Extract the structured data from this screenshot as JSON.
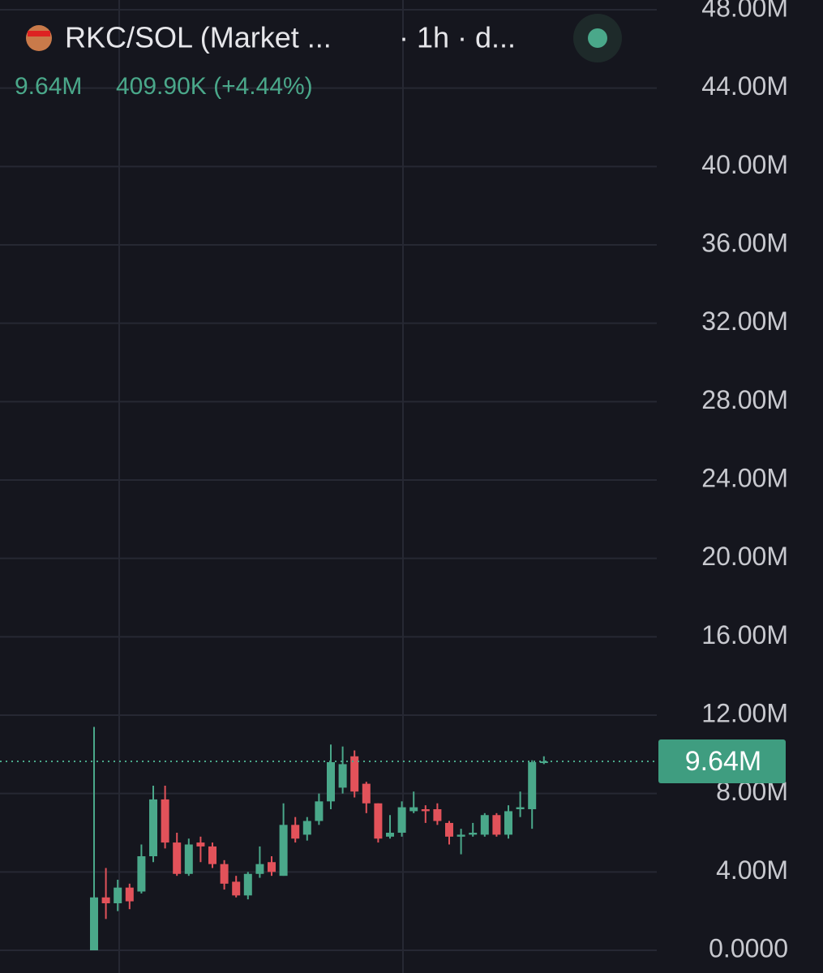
{
  "chart_data": {
    "type": "candlestick",
    "title": "RKC/SOL (Market ...",
    "interval": "· 1h · d...",
    "header_last": "9.64M",
    "header_change": "409.90K (+4.44%)",
    "up_color": "#4aa88a",
    "down_color": "#e2525a",
    "open": [
      0,
      2.7,
      2.4,
      3.2,
      3.0,
      4.8,
      7.7,
      5.5,
      3.9,
      5.5,
      5.3,
      4.4,
      3.5,
      2.8,
      3.9,
      4.5,
      3.8,
      6.4,
      5.9,
      6.6,
      7.6,
      8.3,
      9.9,
      8.5,
      7.5,
      5.8,
      6.0,
      7.1,
      7.2,
      7.2,
      6.5,
      5.8,
      5.9,
      5.9,
      6.9,
      5.9,
      7.2,
      7.2,
      9.6
    ],
    "high": [
      11.4,
      4.2,
      3.6,
      3.4,
      5.4,
      8.4,
      8.4,
      6.0,
      5.7,
      5.8,
      5.5,
      4.6,
      3.8,
      4.0,
      5.3,
      4.8,
      7.5,
      6.8,
      6.8,
      8.0,
      10.5,
      10.4,
      10.2,
      8.6,
      7.5,
      6.9,
      7.6,
      8.1,
      7.4,
      7.5,
      6.6,
      6.2,
      6.5,
      7.0,
      7.0,
      7.4,
      8.1,
      9.7,
      9.9
    ],
    "low": [
      0,
      1.6,
      2.0,
      2.1,
      2.9,
      4.5,
      5.2,
      3.8,
      3.8,
      4.5,
      4.2,
      3.1,
      2.7,
      2.6,
      3.7,
      3.8,
      3.8,
      5.5,
      5.6,
      6.4,
      7.2,
      8.0,
      7.8,
      7.0,
      5.5,
      5.7,
      5.8,
      7.0,
      6.5,
      6.4,
      5.4,
      4.9,
      5.8,
      5.8,
      5.8,
      5.7,
      6.8,
      6.2,
      9.5
    ],
    "close": [
      2.7,
      2.4,
      3.2,
      2.5,
      4.8,
      7.7,
      5.5,
      3.9,
      5.4,
      5.3,
      4.4,
      3.4,
      2.8,
      3.9,
      4.4,
      4.0,
      6.4,
      5.7,
      6.6,
      7.6,
      9.6,
      9.5,
      8.1,
      7.5,
      5.7,
      6.0,
      7.3,
      7.3,
      7.1,
      6.6,
      5.8,
      5.9,
      6.0,
      6.9,
      5.9,
      7.1,
      7.3,
      9.6,
      9.64
    ],
    "last_price": {
      "value": 9.64,
      "label": "9.64M"
    },
    "ylim": [
      0,
      48
    ],
    "yticks": [
      {
        "value": 0,
        "label": "0.0000"
      },
      {
        "value": 4,
        "label": "4.00M"
      },
      {
        "value": 8,
        "label": "8.00M"
      },
      {
        "value": 12,
        "label": "12.00M"
      },
      {
        "value": 16,
        "label": "16.00M"
      },
      {
        "value": 20,
        "label": "20.00M"
      },
      {
        "value": 24,
        "label": "24.00M"
      },
      {
        "value": 28,
        "label": "28.00M"
      },
      {
        "value": 32,
        "label": "32.00M"
      },
      {
        "value": 36,
        "label": "36.00M"
      },
      {
        "value": 40,
        "label": "40.00M"
      },
      {
        "value": 44,
        "label": "44.00M"
      },
      {
        "value": 48,
        "label": "48.00M"
      }
    ],
    "grid": true
  }
}
